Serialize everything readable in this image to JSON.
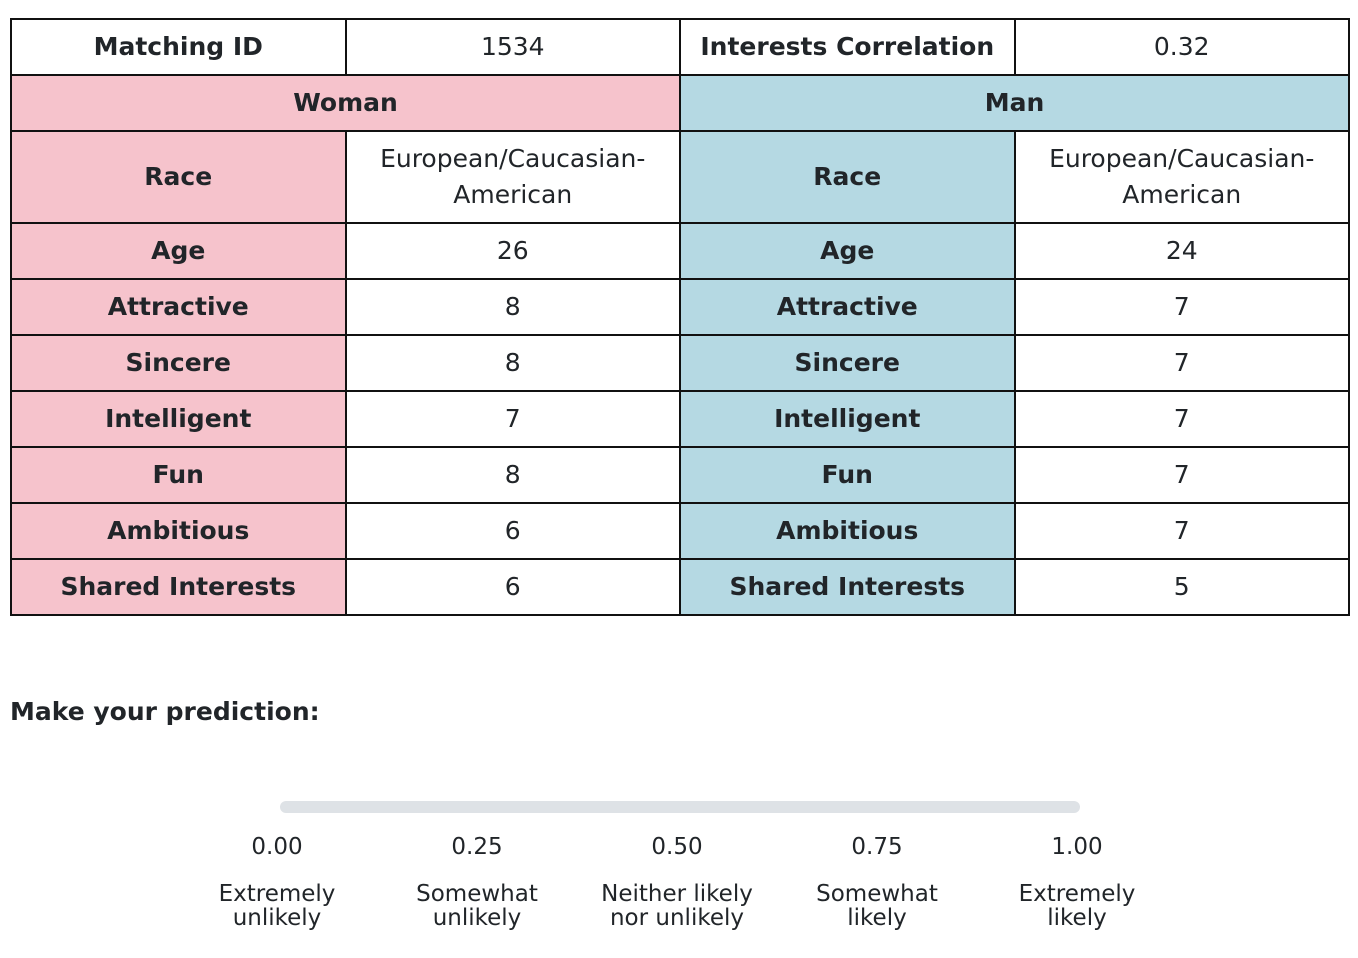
{
  "header": {
    "matching_id_label": "Matching ID",
    "matching_id_value": "1534",
    "correlation_label": "Interests Correlation",
    "correlation_value": "0.32"
  },
  "woman": {
    "title": "Woman",
    "rows": [
      {
        "label": "Race",
        "value": "European/Caucasian-American"
      },
      {
        "label": "Age",
        "value": "26"
      },
      {
        "label": "Attractive",
        "value": "8"
      },
      {
        "label": "Sincere",
        "value": "8"
      },
      {
        "label": "Intelligent",
        "value": "7"
      },
      {
        "label": "Fun",
        "value": "8"
      },
      {
        "label": "Ambitious",
        "value": "6"
      },
      {
        "label": "Shared Interests",
        "value": "6"
      }
    ]
  },
  "man": {
    "title": "Man",
    "rows": [
      {
        "label": "Race",
        "value": "European/Caucasian-American"
      },
      {
        "label": "Age",
        "value": "24"
      },
      {
        "label": "Attractive",
        "value": "7"
      },
      {
        "label": "Sincere",
        "value": "7"
      },
      {
        "label": "Intelligent",
        "value": "7"
      },
      {
        "label": "Fun",
        "value": "7"
      },
      {
        "label": "Ambitious",
        "value": "7"
      },
      {
        "label": "Shared Interests",
        "value": "5"
      }
    ]
  },
  "prediction": {
    "prompt": "Make your prediction:",
    "ticks": [
      {
        "value": "0.00",
        "label_line1": "Extremely",
        "label_line2": "unlikely"
      },
      {
        "value": "0.25",
        "label_line1": "Somewhat",
        "label_line2": "unlikely"
      },
      {
        "value": "0.50",
        "label_line1": "Neither likely",
        "label_line2": "nor unlikely"
      },
      {
        "value": "0.75",
        "label_line1": "Somewhat",
        "label_line2": "likely"
      },
      {
        "value": "1.00",
        "label_line1": "Extremely",
        "label_line2": "likely"
      }
    ]
  },
  "colors": {
    "woman_bg": "#f6c3cc",
    "man_bg": "#b5d9e3",
    "track": "#dee2e6"
  }
}
